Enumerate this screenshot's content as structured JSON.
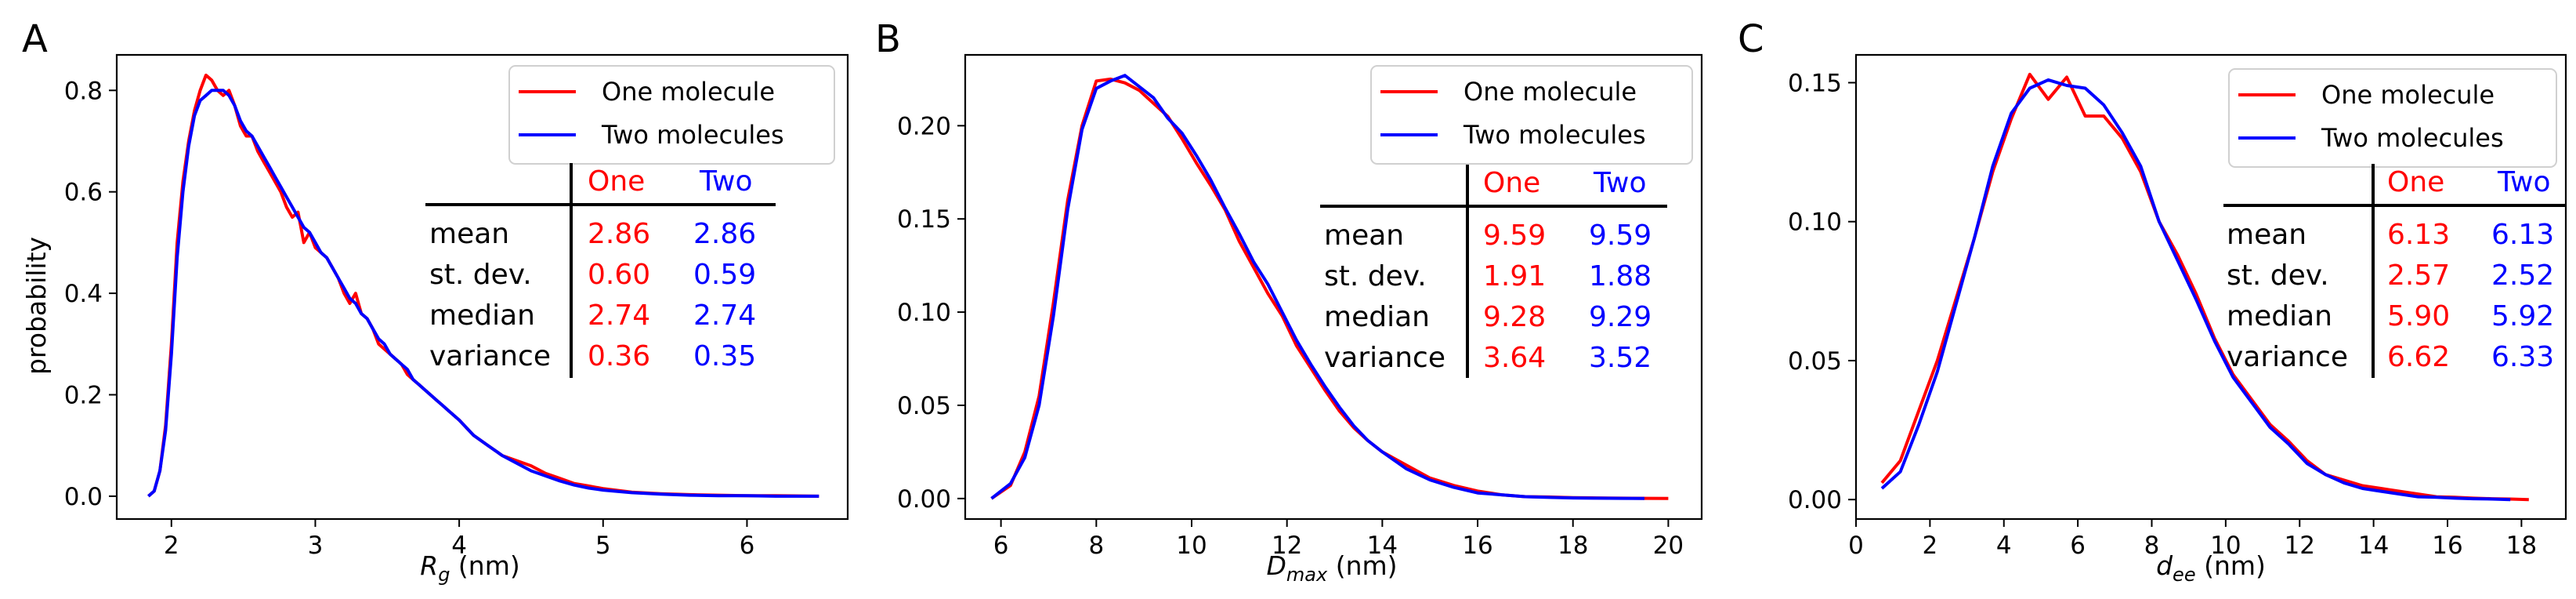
{
  "colors": {
    "one": "#ff0000",
    "two": "#0000ff",
    "axis": "#000000"
  },
  "legend": {
    "one": "One molecule",
    "two": "Two molecules"
  },
  "table_headers": {
    "one": "One",
    "two": "Two"
  },
  "stat_labels": [
    "mean",
    "st. dev.",
    "median",
    "variance"
  ],
  "ylabel": "probability",
  "chart_data": [
    {
      "type": "line",
      "panel_label": "A",
      "xlabel_main": "R",
      "xlabel_sub": "g",
      "xlabel_unit": " (nm)",
      "ylabel": "probability",
      "xlim": [
        1.62,
        6.7
      ],
      "ylim": [
        -0.045,
        0.87
      ],
      "xticks": [
        2,
        3,
        4,
        5,
        6
      ],
      "yticks": [
        0.0,
        0.2,
        0.4,
        0.6,
        0.8
      ],
      "ytick_labels": [
        "0.0",
        "0.2",
        "0.4",
        "0.6",
        "0.8"
      ],
      "legend_position": "upper-right",
      "stats": {
        "one": [
          "2.86",
          "0.60",
          "2.74",
          "0.36"
        ],
        "two": [
          "2.86",
          "0.59",
          "2.74",
          "0.35"
        ]
      },
      "series": [
        {
          "name": "One molecule",
          "color": "#ff0000",
          "x": [
            1.84,
            1.88,
            1.92,
            1.96,
            2.0,
            2.04,
            2.08,
            2.12,
            2.16,
            2.2,
            2.24,
            2.28,
            2.32,
            2.36,
            2.4,
            2.44,
            2.48,
            2.52,
            2.56,
            2.6,
            2.64,
            2.68,
            2.72,
            2.76,
            2.8,
            2.84,
            2.88,
            2.92,
            2.96,
            3.0,
            3.04,
            3.08,
            3.12,
            3.16,
            3.2,
            3.24,
            3.28,
            3.32,
            3.36,
            3.4,
            3.44,
            3.48,
            3.52,
            3.56,
            3.6,
            3.64,
            3.68,
            3.72,
            3.76,
            3.8,
            3.84,
            3.88,
            3.92,
            3.96,
            4.0,
            4.1,
            4.2,
            4.3,
            4.4,
            4.5,
            4.6,
            4.7,
            4.8,
            4.9,
            5.0,
            5.2,
            5.4,
            5.6,
            5.8,
            6.0,
            6.2,
            6.5
          ],
          "y": [
            0.0,
            0.01,
            0.05,
            0.14,
            0.3,
            0.5,
            0.62,
            0.7,
            0.76,
            0.8,
            0.83,
            0.82,
            0.8,
            0.79,
            0.8,
            0.77,
            0.73,
            0.71,
            0.71,
            0.68,
            0.66,
            0.64,
            0.62,
            0.6,
            0.57,
            0.55,
            0.56,
            0.5,
            0.52,
            0.49,
            0.48,
            0.47,
            0.45,
            0.43,
            0.4,
            0.38,
            0.4,
            0.36,
            0.35,
            0.33,
            0.3,
            0.29,
            0.28,
            0.27,
            0.26,
            0.24,
            0.23,
            0.22,
            0.21,
            0.2,
            0.19,
            0.18,
            0.17,
            0.16,
            0.15,
            0.12,
            0.1,
            0.08,
            0.07,
            0.06,
            0.045,
            0.035,
            0.025,
            0.02,
            0.015,
            0.008,
            0.005,
            0.003,
            0.002,
            0.001,
            0.001,
            0.0
          ]
        },
        {
          "name": "Two molecules",
          "color": "#0000ff",
          "x": [
            1.84,
            1.88,
            1.92,
            1.96,
            2.0,
            2.04,
            2.08,
            2.12,
            2.16,
            2.2,
            2.24,
            2.28,
            2.32,
            2.36,
            2.4,
            2.44,
            2.48,
            2.52,
            2.56,
            2.6,
            2.64,
            2.68,
            2.72,
            2.76,
            2.8,
            2.84,
            2.88,
            2.92,
            2.96,
            3.0,
            3.04,
            3.08,
            3.12,
            3.16,
            3.2,
            3.24,
            3.28,
            3.32,
            3.36,
            3.4,
            3.44,
            3.48,
            3.52,
            3.56,
            3.6,
            3.64,
            3.68,
            3.72,
            3.76,
            3.8,
            3.84,
            3.88,
            3.92,
            3.96,
            4.0,
            4.1,
            4.2,
            4.3,
            4.4,
            4.5,
            4.6,
            4.7,
            4.8,
            4.9,
            5.0,
            5.2,
            5.4,
            5.6,
            5.8,
            6.0,
            6.2,
            6.5
          ],
          "y": [
            0.0,
            0.01,
            0.05,
            0.13,
            0.28,
            0.47,
            0.6,
            0.69,
            0.75,
            0.78,
            0.79,
            0.8,
            0.8,
            0.8,
            0.79,
            0.77,
            0.74,
            0.72,
            0.71,
            0.69,
            0.67,
            0.65,
            0.63,
            0.61,
            0.59,
            0.57,
            0.55,
            0.53,
            0.52,
            0.5,
            0.48,
            0.47,
            0.45,
            0.43,
            0.41,
            0.39,
            0.38,
            0.36,
            0.35,
            0.33,
            0.31,
            0.3,
            0.28,
            0.27,
            0.26,
            0.25,
            0.23,
            0.22,
            0.21,
            0.2,
            0.19,
            0.18,
            0.17,
            0.16,
            0.15,
            0.12,
            0.1,
            0.08,
            0.065,
            0.05,
            0.04,
            0.03,
            0.022,
            0.016,
            0.012,
            0.007,
            0.004,
            0.002,
            0.001,
            0.001,
            0.0,
            0.0
          ]
        }
      ]
    },
    {
      "type": "line",
      "panel_label": "B",
      "xlabel_main": "D",
      "xlabel_sub": "max",
      "xlabel_unit": " (nm)",
      "ylabel": "",
      "xlim": [
        5.25,
        20.7
      ],
      "ylim": [
        -0.011,
        0.238
      ],
      "xticks": [
        6,
        8,
        10,
        12,
        14,
        16,
        18,
        20
      ],
      "yticks": [
        0.0,
        0.05,
        0.1,
        0.15,
        0.2
      ],
      "ytick_labels": [
        "0.00",
        "0.05",
        "0.10",
        "0.15",
        "0.20"
      ],
      "legend_position": "upper-right",
      "stats": {
        "one": [
          "9.59",
          "1.91",
          "9.28",
          "3.64"
        ],
        "two": [
          "9.59",
          "1.88",
          "9.29",
          "3.52"
        ]
      },
      "series": [
        {
          "name": "One molecule",
          "color": "#ff0000",
          "x": [
            5.8,
            6.2,
            6.5,
            6.8,
            7.1,
            7.4,
            7.7,
            8.0,
            8.3,
            8.6,
            8.9,
            9.2,
            9.5,
            9.8,
            10.1,
            10.4,
            10.7,
            11.0,
            11.3,
            11.6,
            11.9,
            12.2,
            12.5,
            12.8,
            13.1,
            13.4,
            13.7,
            14.0,
            14.5,
            15.0,
            15.5,
            16.0,
            16.5,
            17.0,
            17.5,
            18.0,
            18.5,
            19.0,
            19.5,
            20.0
          ],
          "y": [
            0.0,
            0.007,
            0.025,
            0.055,
            0.105,
            0.16,
            0.2,
            0.224,
            0.225,
            0.223,
            0.219,
            0.212,
            0.205,
            0.193,
            0.18,
            0.168,
            0.155,
            0.138,
            0.124,
            0.11,
            0.098,
            0.082,
            0.07,
            0.058,
            0.047,
            0.038,
            0.031,
            0.025,
            0.018,
            0.011,
            0.007,
            0.004,
            0.002,
            0.001,
            0.0008,
            0.0005,
            0.0003,
            0.0002,
            0.0001,
            0.0
          ]
        },
        {
          "name": "Two molecules",
          "color": "#0000ff",
          "x": [
            5.8,
            6.2,
            6.5,
            6.8,
            7.1,
            7.4,
            7.7,
            8.0,
            8.3,
            8.6,
            8.9,
            9.2,
            9.5,
            9.8,
            10.1,
            10.4,
            10.7,
            11.0,
            11.3,
            11.6,
            11.9,
            12.2,
            12.5,
            12.8,
            13.1,
            13.4,
            13.7,
            14.0,
            14.5,
            15.0,
            15.5,
            16.0,
            16.5,
            17.0,
            17.5,
            18.0,
            18.5,
            19.0,
            19.5
          ],
          "y": [
            0.0,
            0.008,
            0.022,
            0.05,
            0.098,
            0.155,
            0.198,
            0.22,
            0.224,
            0.227,
            0.221,
            0.215,
            0.204,
            0.196,
            0.184,
            0.171,
            0.156,
            0.142,
            0.127,
            0.115,
            0.1,
            0.085,
            0.072,
            0.06,
            0.049,
            0.039,
            0.031,
            0.025,
            0.016,
            0.01,
            0.006,
            0.003,
            0.002,
            0.001,
            0.0006,
            0.0003,
            0.0002,
            0.0001,
            0.0
          ]
        }
      ]
    },
    {
      "type": "line",
      "panel_label": "C",
      "xlabel_main": "d",
      "xlabel_sub": "ee",
      "xlabel_unit": " (nm)",
      "ylabel": "",
      "xlim": [
        0.0,
        19.2
      ],
      "ylim": [
        -0.007,
        0.16
      ],
      "xticks": [
        0,
        2,
        4,
        6,
        8,
        10,
        12,
        14,
        16,
        18
      ],
      "yticks": [
        0.0,
        0.05,
        0.1,
        0.15
      ],
      "ytick_labels": [
        "0.00",
        "0.05",
        "0.10",
        "0.15"
      ],
      "legend_position": "upper-right",
      "stats": {
        "one": [
          "6.13",
          "2.57",
          "5.90",
          "6.62"
        ],
        "two": [
          "6.13",
          "2.52",
          "5.92",
          "6.33"
        ]
      },
      "series": [
        {
          "name": "One molecule",
          "color": "#ff0000",
          "x": [
            0.7,
            1.2,
            1.7,
            2.2,
            2.7,
            3.2,
            3.7,
            4.2,
            4.7,
            5.2,
            5.7,
            6.2,
            6.7,
            7.2,
            7.7,
            8.2,
            8.7,
            9.2,
            9.7,
            10.2,
            10.7,
            11.2,
            11.7,
            12.2,
            12.7,
            13.2,
            13.7,
            14.2,
            14.7,
            15.2,
            15.7,
            16.2,
            16.7,
            17.2,
            17.7,
            18.2
          ],
          "y": [
            0.006,
            0.014,
            0.032,
            0.05,
            0.072,
            0.094,
            0.118,
            0.137,
            0.153,
            0.144,
            0.152,
            0.138,
            0.138,
            0.13,
            0.118,
            0.1,
            0.088,
            0.074,
            0.058,
            0.045,
            0.036,
            0.027,
            0.021,
            0.014,
            0.009,
            0.007,
            0.005,
            0.004,
            0.003,
            0.002,
            0.001,
            0.0008,
            0.0005,
            0.0003,
            0.0002,
            0.0
          ]
        },
        {
          "name": "Two molecules",
          "color": "#0000ff",
          "x": [
            0.7,
            1.2,
            1.7,
            2.2,
            2.7,
            3.2,
            3.7,
            4.2,
            4.7,
            5.2,
            5.7,
            6.2,
            6.7,
            7.2,
            7.7,
            8.2,
            8.7,
            9.2,
            9.7,
            10.2,
            10.7,
            11.2,
            11.7,
            12.2,
            12.7,
            13.2,
            13.7,
            14.2,
            14.7,
            15.2,
            15.7,
            16.2,
            16.7,
            17.2,
            17.7
          ],
          "y": [
            0.004,
            0.01,
            0.027,
            0.046,
            0.07,
            0.094,
            0.12,
            0.139,
            0.148,
            0.151,
            0.149,
            0.148,
            0.142,
            0.132,
            0.12,
            0.1,
            0.086,
            0.072,
            0.057,
            0.044,
            0.035,
            0.026,
            0.02,
            0.013,
            0.009,
            0.006,
            0.004,
            0.003,
            0.002,
            0.001,
            0.0008,
            0.0005,
            0.0003,
            0.0002,
            0.0
          ]
        }
      ]
    }
  ]
}
